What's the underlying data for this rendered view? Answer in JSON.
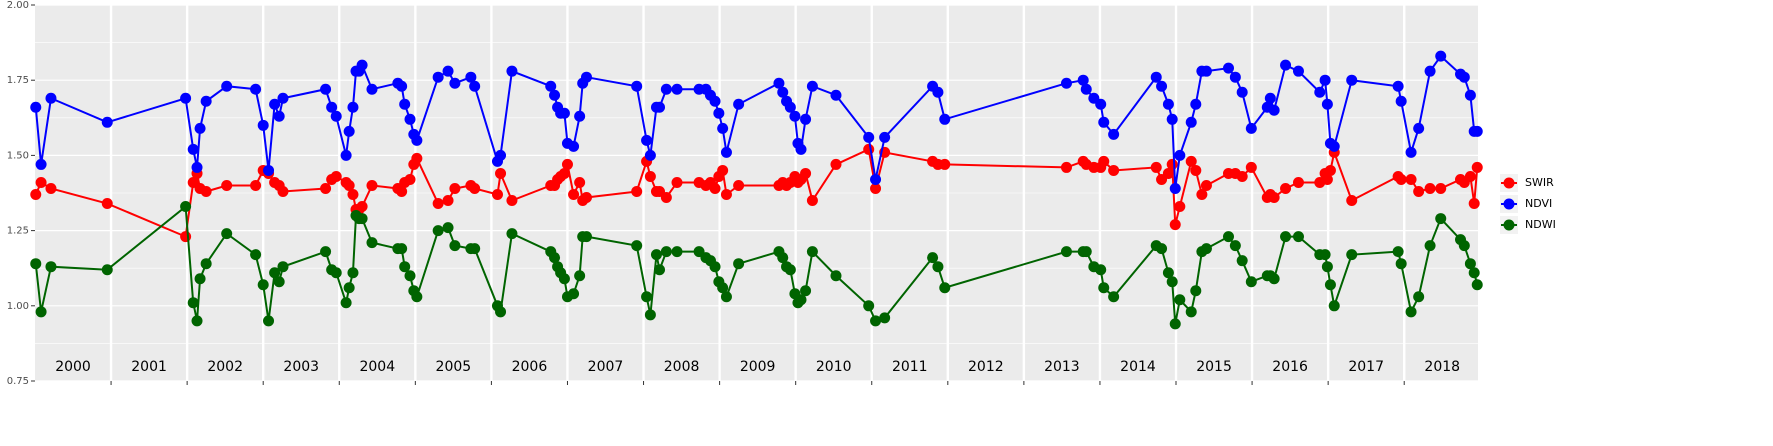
{
  "chart_data": {
    "type": "line",
    "x": [
      2000.01,
      2000.08,
      2000.21,
      2000.95,
      2001.98,
      2002.08,
      2002.13,
      2002.17,
      2002.25,
      2002.52,
      2002.9,
      2003.0,
      2003.07,
      2003.15,
      2003.21,
      2003.26,
      2003.82,
      2003.9,
      2003.96,
      2004.09,
      2004.13,
      2004.18,
      2004.22,
      2004.26,
      2004.3,
      2004.43,
      2004.77,
      2004.82,
      2004.86,
      2004.93,
      2004.98,
      2005.02,
      2005.3,
      2005.43,
      2005.52,
      2005.73,
      2005.78,
      2006.08,
      2006.12,
      2006.27,
      2006.78,
      2006.83,
      2006.87,
      2006.91,
      2006.96,
      2007.0,
      2007.08,
      2007.16,
      2007.2,
      2007.25,
      2007.91,
      2008.04,
      2008.09,
      2008.17,
      2008.21,
      2008.3,
      2008.44,
      2008.73,
      2008.82,
      2008.88,
      2008.94,
      2008.99,
      2009.04,
      2009.09,
      2009.25,
      2009.78,
      2009.83,
      2009.88,
      2009.93,
      2009.99,
      2010.03,
      2010.07,
      2010.13,
      2010.22,
      2010.53,
      2010.96,
      2011.05,
      2011.17,
      2011.8,
      2011.87,
      2011.96,
      2013.56,
      2013.78,
      2013.82,
      2013.92,
      2014.01,
      2014.05,
      2014.18,
      2014.74,
      2014.81,
      2014.9,
      2014.95,
      2014.99,
      2015.05,
      2015.2,
      2015.26,
      2015.34,
      2015.4,
      2015.69,
      2015.78,
      2015.87,
      2015.99,
      2016.2,
      2016.24,
      2016.29,
      2016.44,
      2016.61,
      2016.89,
      2016.96,
      2016.99,
      2017.03,
      2017.08,
      2017.31,
      2017.92,
      2017.96,
      2018.09,
      2018.19,
      2018.34,
      2018.48,
      2018.74,
      2018.79,
      2018.87,
      2018.92,
      2018.96
    ],
    "series": [
      {
        "name": "SWIR",
        "color": "#ff0000",
        "values": [
          1.37,
          1.41,
          1.39,
          1.34,
          1.23,
          1.41,
          1.44,
          1.39,
          1.38,
          1.4,
          1.4,
          1.45,
          1.44,
          1.41,
          1.4,
          1.38,
          1.39,
          1.42,
          1.43,
          1.41,
          1.4,
          1.37,
          1.32,
          1.32,
          1.33,
          1.4,
          1.39,
          1.38,
          1.41,
          1.42,
          1.47,
          1.49,
          1.34,
          1.35,
          1.39,
          1.4,
          1.39,
          1.37,
          1.44,
          1.35,
          1.4,
          1.4,
          1.42,
          1.43,
          1.44,
          1.47,
          1.37,
          1.41,
          1.35,
          1.36,
          1.38,
          1.48,
          1.43,
          1.38,
          1.38,
          1.36,
          1.41,
          1.41,
          1.4,
          1.41,
          1.39,
          1.43,
          1.45,
          1.37,
          1.4,
          1.4,
          1.41,
          1.4,
          1.41,
          1.43,
          1.41,
          1.42,
          1.44,
          1.35,
          1.47,
          1.52,
          1.39,
          1.51,
          1.48,
          1.47,
          1.47,
          1.46,
          1.48,
          1.47,
          1.46,
          1.46,
          1.48,
          1.45,
          1.46,
          1.42,
          1.44,
          1.47,
          1.27,
          1.33,
          1.48,
          1.45,
          1.37,
          1.4,
          1.44,
          1.44,
          1.43,
          1.46,
          1.36,
          1.37,
          1.36,
          1.39,
          1.41,
          1.41,
          1.44,
          1.42,
          1.45,
          1.51,
          1.35,
          1.43,
          1.42,
          1.42,
          1.38,
          1.39,
          1.39,
          1.42,
          1.41,
          1.43,
          1.34,
          1.46
        ]
      },
      {
        "name": "NDVI",
        "color": "#0000ff",
        "values": [
          1.66,
          1.47,
          1.69,
          1.61,
          1.69,
          1.52,
          1.46,
          1.59,
          1.68,
          1.73,
          1.72,
          1.6,
          1.45,
          1.67,
          1.63,
          1.69,
          1.72,
          1.66,
          1.63,
          1.5,
          1.58,
          1.66,
          1.78,
          1.78,
          1.8,
          1.72,
          1.74,
          1.73,
          1.67,
          1.62,
          1.57,
          1.55,
          1.76,
          1.78,
          1.74,
          1.76,
          1.73,
          1.48,
          1.5,
          1.78,
          1.73,
          1.7,
          1.66,
          1.64,
          1.64,
          1.54,
          1.53,
          1.63,
          1.74,
          1.76,
          1.73,
          1.55,
          1.5,
          1.66,
          1.66,
          1.72,
          1.72,
          1.72,
          1.72,
          1.7,
          1.68,
          1.64,
          1.59,
          1.51,
          1.67,
          1.74,
          1.71,
          1.68,
          1.66,
          1.63,
          1.54,
          1.52,
          1.62,
          1.73,
          1.7,
          1.56,
          1.42,
          1.56,
          1.73,
          1.71,
          1.62,
          1.74,
          1.75,
          1.72,
          1.69,
          1.67,
          1.61,
          1.57,
          1.76,
          1.73,
          1.67,
          1.62,
          1.39,
          1.5,
          1.61,
          1.67,
          1.78,
          1.78,
          1.79,
          1.76,
          1.71,
          1.59,
          1.66,
          1.69,
          1.65,
          1.8,
          1.78,
          1.71,
          1.75,
          1.67,
          1.54,
          1.53,
          1.75,
          1.73,
          1.68,
          1.51,
          1.59,
          1.78,
          1.83,
          1.77,
          1.76,
          1.7,
          1.58,
          1.58
        ]
      },
      {
        "name": "NDWI",
        "color": "#006400",
        "values": [
          1.14,
          0.98,
          1.13,
          1.12,
          1.33,
          1.01,
          0.95,
          1.09,
          1.14,
          1.24,
          1.17,
          1.07,
          0.95,
          1.11,
          1.08,
          1.13,
          1.18,
          1.12,
          1.11,
          1.01,
          1.06,
          1.11,
          1.3,
          1.29,
          1.29,
          1.21,
          1.19,
          1.19,
          1.13,
          1.1,
          1.05,
          1.03,
          1.25,
          1.26,
          1.2,
          1.19,
          1.19,
          1.0,
          0.98,
          1.24,
          1.18,
          1.16,
          1.13,
          1.11,
          1.09,
          1.03,
          1.04,
          1.1,
          1.23,
          1.23,
          1.2,
          1.03,
          0.97,
          1.17,
          1.12,
          1.18,
          1.18,
          1.18,
          1.16,
          1.15,
          1.13,
          1.08,
          1.06,
          1.03,
          1.14,
          1.18,
          1.16,
          1.13,
          1.12,
          1.04,
          1.01,
          1.02,
          1.05,
          1.18,
          1.1,
          1.0,
          0.95,
          0.96,
          1.16,
          1.13,
          1.06,
          1.18,
          1.18,
          1.18,
          1.13,
          1.12,
          1.06,
          1.03,
          1.2,
          1.19,
          1.11,
          1.08,
          0.94,
          1.02,
          0.98,
          1.05,
          1.18,
          1.19,
          1.23,
          1.2,
          1.15,
          1.08,
          1.1,
          1.1,
          1.09,
          1.23,
          1.23,
          1.17,
          1.17,
          1.13,
          1.07,
          1.0,
          1.17,
          1.18,
          1.14,
          0.98,
          1.03,
          1.2,
          1.29,
          1.22,
          1.2,
          1.14,
          1.11,
          1.07
        ]
      }
    ],
    "xlim": [
      2000,
      2018.97
    ],
    "xticks": [
      2001,
      2002,
      2003,
      2004,
      2005,
      2006,
      2007,
      2008,
      2009,
      2010,
      2011,
      2012,
      2013,
      2014,
      2015,
      2016,
      2017,
      2018
    ],
    "year_labels": [
      "2000",
      "2001",
      "2002",
      "2003",
      "2004",
      "2005",
      "2006",
      "2007",
      "2008",
      "2009",
      "2010",
      "2011",
      "2012",
      "2013",
      "2014",
      "2015",
      "2016",
      "2017",
      "2018"
    ],
    "ylim": [
      0.75,
      2.0
    ],
    "yticks": [
      0.75,
      {
        "value": 1.0,
        "label": "1.00"
      },
      1.25,
      {
        "value": 1.5,
        "label": "1.50"
      },
      1.75,
      {
        "value": 2.0,
        "label": "2.00"
      }
    ],
    "grid": true,
    "legend": "right"
  }
}
